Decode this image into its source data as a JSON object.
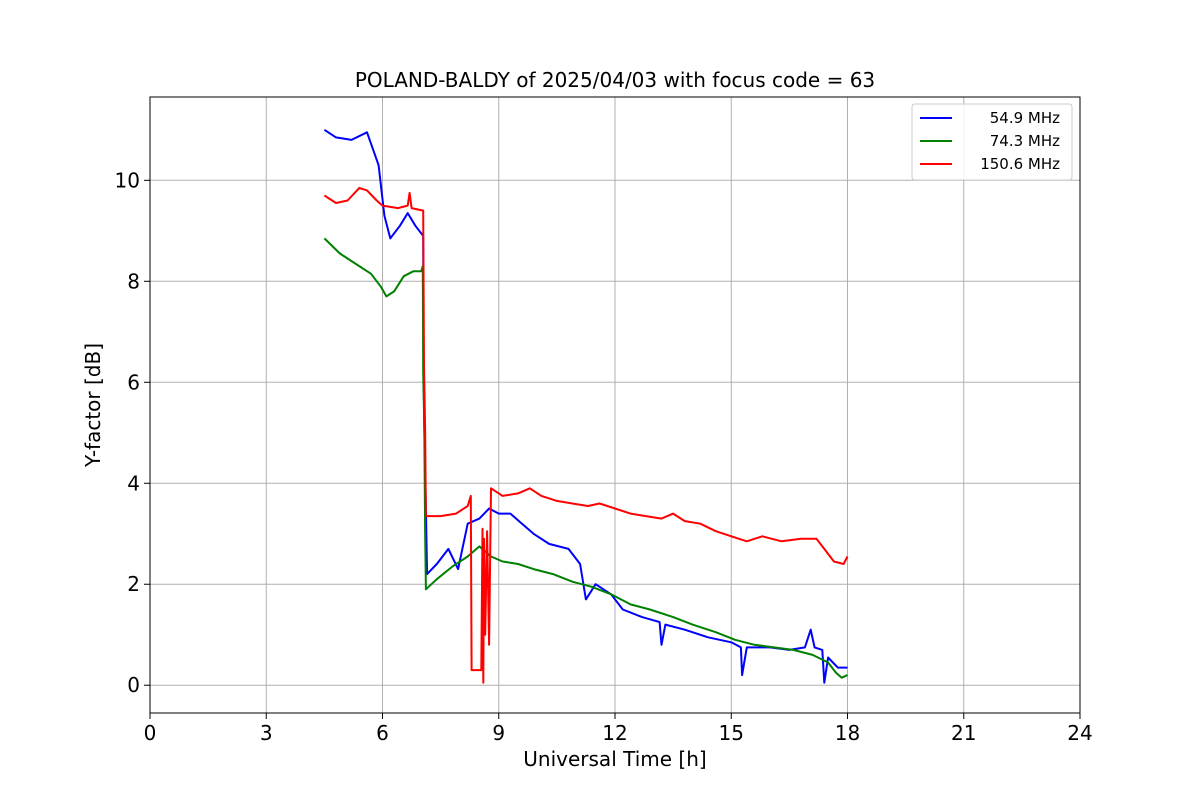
{
  "chart_data": {
    "type": "line",
    "title": "POLAND-BALDY of 2025/04/03 with focus code = 63",
    "xlabel": "Universal Time [h]",
    "ylabel": "Y-factor [dB]",
    "xlim": [
      0,
      24
    ],
    "ylim": [
      -0.55,
      11.65
    ],
    "xticks": [
      0,
      3,
      6,
      9,
      12,
      15,
      18,
      21,
      24
    ],
    "xtick_labels": [
      "0",
      "3",
      "6",
      "9",
      "12",
      "15",
      "18",
      "21",
      "24"
    ],
    "yticks": [
      0,
      2,
      4,
      6,
      8,
      10
    ],
    "ytick_labels": [
      "0",
      "2",
      "4",
      "6",
      "8",
      "10"
    ],
    "grid": true,
    "legend_position": "top-right",
    "series": [
      {
        "name": "54.9 MHz",
        "color": "#0000ff",
        "points": [
          [
            4.5,
            11.0
          ],
          [
            4.8,
            10.85
          ],
          [
            5.2,
            10.8
          ],
          [
            5.6,
            10.95
          ],
          [
            5.9,
            10.3
          ],
          [
            6.05,
            9.3
          ],
          [
            6.2,
            8.85
          ],
          [
            6.45,
            9.1
          ],
          [
            6.65,
            9.35
          ],
          [
            6.85,
            9.1
          ],
          [
            7.05,
            8.9
          ],
          [
            7.06,
            6.3
          ],
          [
            7.08,
            5.1
          ],
          [
            7.12,
            3.5
          ],
          [
            7.15,
            2.2
          ],
          [
            7.4,
            2.4
          ],
          [
            7.7,
            2.7
          ],
          [
            7.95,
            2.3
          ],
          [
            8.2,
            3.2
          ],
          [
            8.5,
            3.3
          ],
          [
            8.75,
            3.5
          ],
          [
            9.0,
            3.4
          ],
          [
            9.3,
            3.4
          ],
          [
            9.6,
            3.2
          ],
          [
            9.9,
            3.0
          ],
          [
            10.3,
            2.8
          ],
          [
            10.8,
            2.7
          ],
          [
            11.1,
            2.4
          ],
          [
            11.25,
            1.7
          ],
          [
            11.5,
            2.0
          ],
          [
            11.9,
            1.8
          ],
          [
            12.2,
            1.5
          ],
          [
            12.7,
            1.35
          ],
          [
            13.15,
            1.25
          ],
          [
            13.2,
            0.8
          ],
          [
            13.3,
            1.2
          ],
          [
            13.8,
            1.1
          ],
          [
            14.4,
            0.95
          ],
          [
            15.0,
            0.85
          ],
          [
            15.25,
            0.75
          ],
          [
            15.28,
            0.2
          ],
          [
            15.4,
            0.75
          ],
          [
            16.0,
            0.75
          ],
          [
            16.5,
            0.7
          ],
          [
            16.9,
            0.75
          ],
          [
            17.05,
            1.1
          ],
          [
            17.15,
            0.75
          ],
          [
            17.35,
            0.7
          ],
          [
            17.4,
            0.05
          ],
          [
            17.5,
            0.55
          ],
          [
            17.75,
            0.35
          ],
          [
            18.0,
            0.35
          ]
        ]
      },
      {
        "name": "74.3 MHz",
        "color": "#008000",
        "points": [
          [
            4.5,
            8.85
          ],
          [
            4.9,
            8.55
          ],
          [
            5.3,
            8.35
          ],
          [
            5.7,
            8.15
          ],
          [
            5.95,
            7.9
          ],
          [
            6.1,
            7.7
          ],
          [
            6.3,
            7.8
          ],
          [
            6.55,
            8.1
          ],
          [
            6.8,
            8.2
          ],
          [
            7.0,
            8.2
          ],
          [
            7.04,
            8.3
          ],
          [
            7.05,
            6.2
          ],
          [
            7.08,
            5.1
          ],
          [
            7.1,
            3.1
          ],
          [
            7.12,
            1.9
          ],
          [
            7.4,
            2.1
          ],
          [
            7.8,
            2.35
          ],
          [
            8.2,
            2.55
          ],
          [
            8.5,
            2.75
          ],
          [
            8.8,
            2.55
          ],
          [
            9.1,
            2.45
          ],
          [
            9.5,
            2.4
          ],
          [
            9.9,
            2.3
          ],
          [
            10.4,
            2.2
          ],
          [
            10.9,
            2.05
          ],
          [
            11.4,
            1.95
          ],
          [
            11.9,
            1.8
          ],
          [
            12.4,
            1.6
          ],
          [
            12.9,
            1.5
          ],
          [
            13.5,
            1.35
          ],
          [
            14.0,
            1.2
          ],
          [
            14.6,
            1.05
          ],
          [
            15.1,
            0.9
          ],
          [
            15.6,
            0.8
          ],
          [
            16.1,
            0.75
          ],
          [
            16.6,
            0.7
          ],
          [
            17.1,
            0.6
          ],
          [
            17.5,
            0.45
          ],
          [
            17.7,
            0.25
          ],
          [
            17.85,
            0.15
          ],
          [
            18.0,
            0.2
          ]
        ]
      },
      {
        "name": "150.6 MHz",
        "color": "#ff0000",
        "points": [
          [
            4.5,
            9.7
          ],
          [
            4.8,
            9.55
          ],
          [
            5.1,
            9.6
          ],
          [
            5.4,
            9.85
          ],
          [
            5.6,
            9.8
          ],
          [
            5.85,
            9.6
          ],
          [
            6.0,
            9.5
          ],
          [
            6.4,
            9.45
          ],
          [
            6.65,
            9.5
          ],
          [
            6.7,
            9.75
          ],
          [
            6.75,
            9.45
          ],
          [
            7.05,
            9.4
          ],
          [
            7.07,
            6.3
          ],
          [
            7.1,
            5.1
          ],
          [
            7.12,
            3.35
          ],
          [
            7.5,
            3.35
          ],
          [
            7.9,
            3.4
          ],
          [
            8.2,
            3.55
          ],
          [
            8.28,
            3.75
          ],
          [
            8.3,
            0.3
          ],
          [
            8.55,
            0.3
          ],
          [
            8.58,
            3.1
          ],
          [
            8.6,
            0.05
          ],
          [
            8.62,
            2.9
          ],
          [
            8.65,
            1.0
          ],
          [
            8.7,
            3.05
          ],
          [
            8.75,
            0.8
          ],
          [
            8.8,
            3.9
          ],
          [
            9.1,
            3.75
          ],
          [
            9.5,
            3.8
          ],
          [
            9.8,
            3.9
          ],
          [
            10.1,
            3.75
          ],
          [
            10.5,
            3.65
          ],
          [
            10.9,
            3.6
          ],
          [
            11.3,
            3.55
          ],
          [
            11.6,
            3.6
          ],
          [
            12.0,
            3.5
          ],
          [
            12.4,
            3.4
          ],
          [
            12.8,
            3.35
          ],
          [
            13.2,
            3.3
          ],
          [
            13.5,
            3.4
          ],
          [
            13.8,
            3.25
          ],
          [
            14.2,
            3.2
          ],
          [
            14.6,
            3.05
          ],
          [
            15.0,
            2.95
          ],
          [
            15.4,
            2.85
          ],
          [
            15.8,
            2.95
          ],
          [
            16.3,
            2.85
          ],
          [
            16.8,
            2.9
          ],
          [
            17.2,
            2.9
          ],
          [
            17.45,
            2.65
          ],
          [
            17.65,
            2.45
          ],
          [
            17.9,
            2.4
          ],
          [
            18.0,
            2.55
          ]
        ]
      }
    ]
  }
}
